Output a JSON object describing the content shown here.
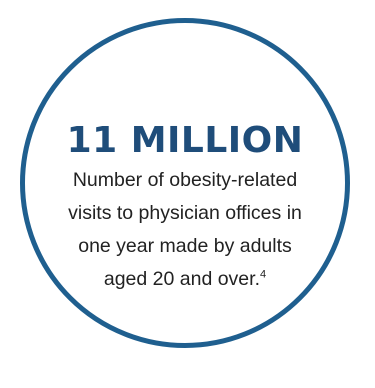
{
  "stat": {
    "value": "11 MILLION",
    "description_line_1": "Number of obesity-related",
    "description_line_2": "visits to physician offices in",
    "description_line_3": "one year made by adults",
    "description_line_4": "aged 20 and over.",
    "footnote": "4"
  },
  "colors": {
    "circle_border": "#1f5f8f",
    "value_text": "#1f4d7a",
    "body_text": "#222222",
    "background": "#ffffff"
  }
}
